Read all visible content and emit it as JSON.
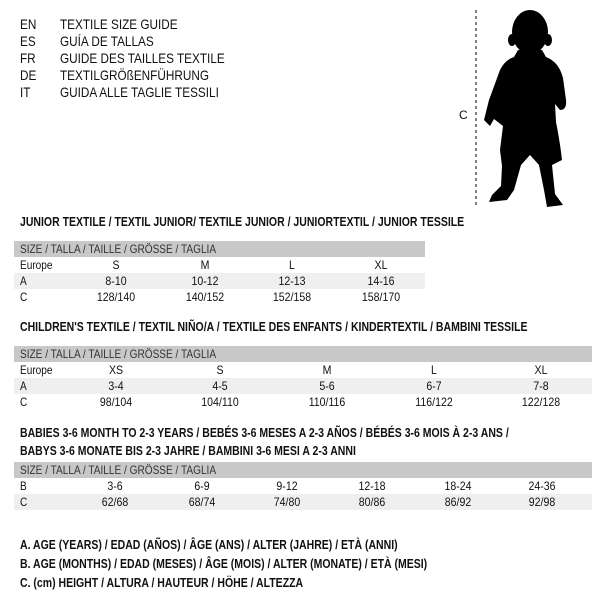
{
  "languages": [
    {
      "code": "EN",
      "title": "TEXTILE SIZE GUIDE"
    },
    {
      "code": "ES",
      "title": "GUÍA DE TALLAS"
    },
    {
      "code": "FR",
      "title": "GUIDE DES TAILLES TEXTILE"
    },
    {
      "code": "DE",
      "title": "TEXTILGRÖßENFÜHRUNG"
    },
    {
      "code": "IT",
      "title": "GUIDA ALLE TAGLIE TESSILI"
    }
  ],
  "figure": {
    "measure_label": "C",
    "icon": "baby-silhouette"
  },
  "tables": [
    {
      "title_lines": [
        "JUNIOR TEXTILE / TEXTIL JUNIOR/ TEXTILE JUNIOR / JUNIORTEXTIL / JUNIOR TESSILE"
      ],
      "header": "SIZE / TALLA / TAILLE / GRÖSSE / TAGLIA",
      "rows": [
        {
          "label": "Europe",
          "values": [
            "S",
            "M",
            "L",
            "XL"
          ]
        },
        {
          "label": "A",
          "values": [
            "8-10",
            "10-12",
            "12-13",
            "14-16"
          ]
        },
        {
          "label": "C",
          "values": [
            "128/140",
            "140/152",
            "152/158",
            "158/170"
          ]
        }
      ]
    },
    {
      "title_lines": [
        "CHILDREN'S TEXTILE / TEXTIL NIÑO/A / TEXTILE DES ENFANTS / KINDERTEXTIL / BAMBINI TESSILE"
      ],
      "header": "SIZE / TALLA / TAILLE / GRÖSSE / TAGLIA",
      "rows": [
        {
          "label": "Europe",
          "values": [
            "XS",
            "S",
            "M",
            "L",
            "XL"
          ]
        },
        {
          "label": "A",
          "values": [
            "3-4",
            "4-5",
            "5-6",
            "6-7",
            "7-8"
          ]
        },
        {
          "label": "C",
          "values": [
            "98/104",
            "104/110",
            "110/116",
            "116/122",
            "122/128"
          ]
        }
      ]
    },
    {
      "title_lines": [
        "BABIES 3-6 MONTH TO 2-3 YEARS / BEBÉS 3-6 MESES A 2-3 AÑOS / BÉBÉS 3-6 MOIS À 2-3 ANS /",
        "BABYS 3-6 MONATE BIS 2-3 JAHRE / BAMBINI 3-6 MESI A 2-3 ANNI"
      ],
      "header": "SIZE / TALLA / TAILLE / GRÖSSE / TAGLIA",
      "rows": [
        {
          "label": "B",
          "values": [
            "3-6",
            "6-9",
            "9-12",
            "12-18",
            "18-24",
            "24-36"
          ]
        },
        {
          "label": "C",
          "values": [
            "62/68",
            "68/74",
            "74/80",
            "80/86",
            "86/92",
            "92/98"
          ]
        }
      ]
    }
  ],
  "legend": [
    "A. AGE (YEARS) / EDAD (AÑOS) / ÂGE (ANS) / ALTER (JAHRE) / ETÀ (ANNI)",
    "B. AGE (MONTHS) / EDAD (MESES) / ÂGE (MOIS) / ALTER (MONATE) / ETÀ (MESI)",
    "C. (cm) HEIGHT / ALTURA / HAUTEUR / HÖHE / ALTEZZA"
  ],
  "colors": {
    "header_bg": "#c8c8c8",
    "shade_bg": "#efefef"
  }
}
